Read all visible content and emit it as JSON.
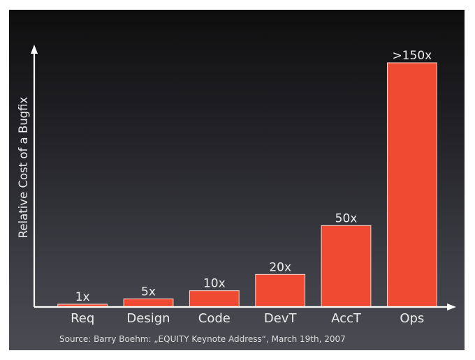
{
  "chart_data": {
    "type": "bar",
    "title": "",
    "xlabel": "",
    "ylabel": "Relative Cost of a Bugfix",
    "categories": [
      "Req",
      "Design",
      "Code",
      "DevT",
      "AccT",
      "Ops"
    ],
    "values": [
      1,
      5,
      10,
      20,
      50,
      150
    ],
    "data_labels": [
      "1x",
      "5x",
      "10x",
      "20x",
      "50x",
      ">150x"
    ],
    "y_tick_labels": [],
    "grid": false,
    "legend": "none",
    "bar_color": "#f04a32",
    "background": "dark gradient",
    "source": "Source: Barry Boehm: „EQUITY Keynote Address“, March 19th, 2007"
  }
}
